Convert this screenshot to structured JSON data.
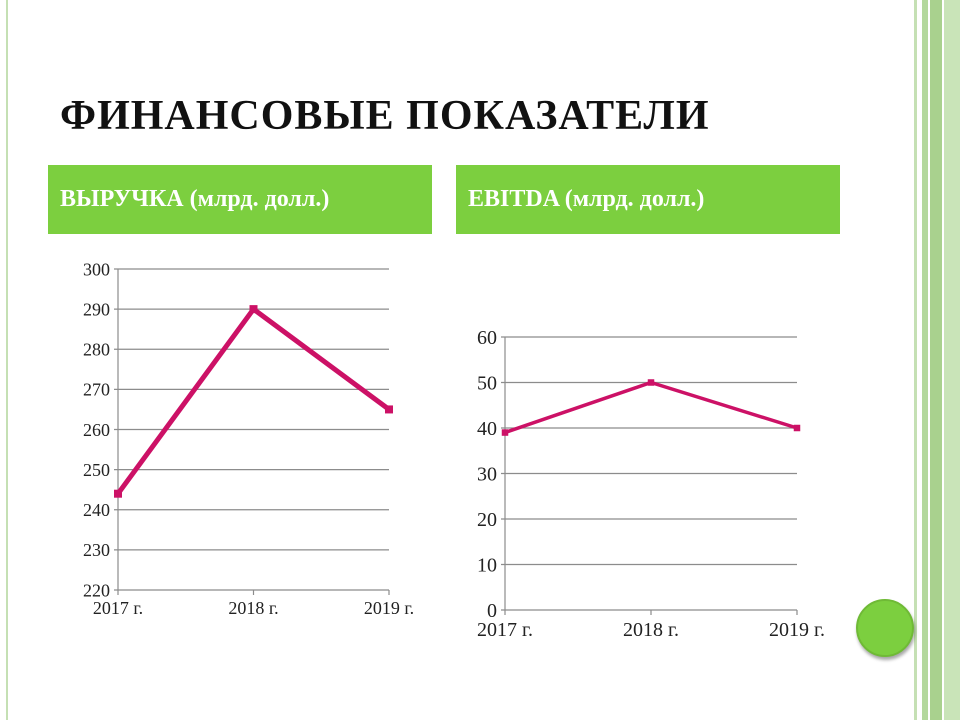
{
  "slide": {
    "title": "ФИНАНСОВЫЕ ПОКАЗАТЕЛИ",
    "accent_color": "#7ccf3f",
    "line_color": "#cc1166"
  },
  "panels": [
    {
      "header": "ВЫРУЧКА (млрд. долл.)"
    },
    {
      "header": "EBITDA (млрд. долл.)"
    }
  ],
  "chart_data": [
    {
      "type": "line",
      "categories": [
        "2017 г.",
        "2018 г.",
        "2019 г."
      ],
      "series": [
        {
          "values": [
            244,
            290,
            265
          ]
        }
      ],
      "ylim": [
        220,
        300
      ],
      "yticks": [
        220,
        230,
        240,
        250,
        260,
        270,
        280,
        290,
        300
      ],
      "grid": true,
      "legend": "none"
    },
    {
      "type": "line",
      "categories": [
        "2017 г.",
        "2018 г.",
        "2019 г."
      ],
      "series": [
        {
          "values": [
            39,
            50,
            40
          ]
        }
      ],
      "ylim": [
        0,
        60
      ],
      "yticks": [
        0,
        10,
        20,
        30,
        40,
        50,
        60
      ],
      "grid": true,
      "legend": "none"
    }
  ]
}
